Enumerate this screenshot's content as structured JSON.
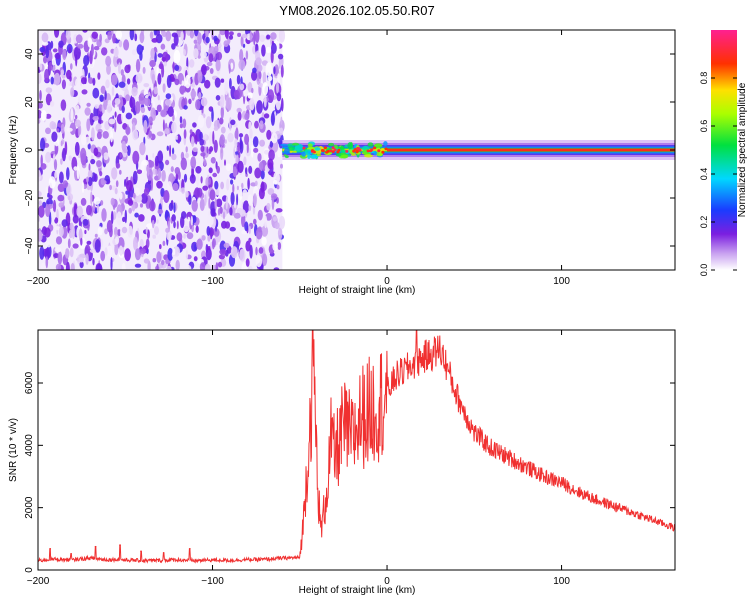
{
  "figure_title": "YM08.2026.102.05.50.R07",
  "chart_data": [
    {
      "type": "heatmap",
      "title": "YM08.2026.102.05.50.R07",
      "xlabel": "Height of straight line (km)",
      "ylabel": "Frequency (Hz)",
      "xlim": [
        -200,
        165
      ],
      "ylim": [
        -50,
        50
      ],
      "xticks": [
        -200,
        -100,
        0,
        100
      ],
      "yticks": [
        -40,
        -20,
        0,
        20,
        40
      ],
      "colorbar": {
        "label": "Normalized spectral amplitude",
        "range": [
          0,
          1
        ],
        "ticks": [
          0.0,
          0.2,
          0.4,
          0.6,
          0.8
        ],
        "colormap": "rainbow (white-purple-blue-cyan-green-yellow-red-magenta)"
      },
      "regions": [
        {
          "x_range": [
            -200,
            -60
          ],
          "description": "broadband noise",
          "amplitude": [
            0.0,
            0.2
          ]
        },
        {
          "x_range": [
            -60,
            0
          ],
          "frequency_center": 0,
          "bandwidth": [
            -3,
            3
          ],
          "peak_amplitude": 0.8
        },
        {
          "x_range": [
            0,
            165
          ],
          "frequency_center": 0,
          "bandwidth": [
            -2,
            2
          ],
          "peak_amplitude": 1.0
        }
      ],
      "colors": {
        "noise": "#8a2be2",
        "peak": "#ff2020"
      }
    },
    {
      "type": "line",
      "xlabel": "Height of straight line (km)",
      "ylabel": "SNR (10 * v/v)",
      "xlim": [
        -200,
        165
      ],
      "ylim": [
        0,
        7700
      ],
      "xticks": [
        -200,
        -100,
        0,
        100
      ],
      "yticks": [
        0,
        2000,
        4000,
        6000
      ],
      "series": [
        {
          "name": "SNR",
          "color": "#f03030",
          "x": [
            -200,
            -190,
            -180,
            -175,
            -170,
            -160,
            -155,
            -150,
            -140,
            -130,
            -120,
            -110,
            -100,
            -90,
            -80,
            -70,
            -60,
            -50,
            -48,
            -45,
            -42,
            -40,
            -38,
            -35,
            -32,
            -30,
            -25,
            -20,
            -15,
            -10,
            -5,
            0,
            5,
            10,
            15,
            20,
            25,
            30,
            32,
            35,
            40,
            45,
            50,
            60,
            70,
            80,
            90,
            100,
            110,
            120,
            130,
            140,
            150,
            160,
            165
          ],
          "values": [
            300,
            350,
            320,
            360,
            380,
            330,
            340,
            320,
            300,
            310,
            330,
            300,
            320,
            310,
            330,
            340,
            380,
            400,
            1500,
            4000,
            6600,
            3000,
            1200,
            2300,
            4200,
            3600,
            4600,
            4200,
            4900,
            5100,
            5300,
            5700,
            6200,
            6400,
            6600,
            6800,
            6900,
            7100,
            6900,
            6400,
            5600,
            5000,
            4400,
            3900,
            3600,
            3300,
            3000,
            2800,
            2500,
            2250,
            2050,
            1850,
            1650,
            1450,
            1350
          ],
          "spikes": [
            {
              "x": -193,
              "value": 680
            },
            {
              "x": -181,
              "value": 520
            },
            {
              "x": -167,
              "value": 750
            },
            {
              "x": -153,
              "value": 800
            },
            {
              "x": -141,
              "value": 600
            },
            {
              "x": -128,
              "value": 550
            },
            {
              "x": -113,
              "value": 680
            },
            {
              "x": 17,
              "value": 7700
            }
          ]
        }
      ]
    }
  ]
}
